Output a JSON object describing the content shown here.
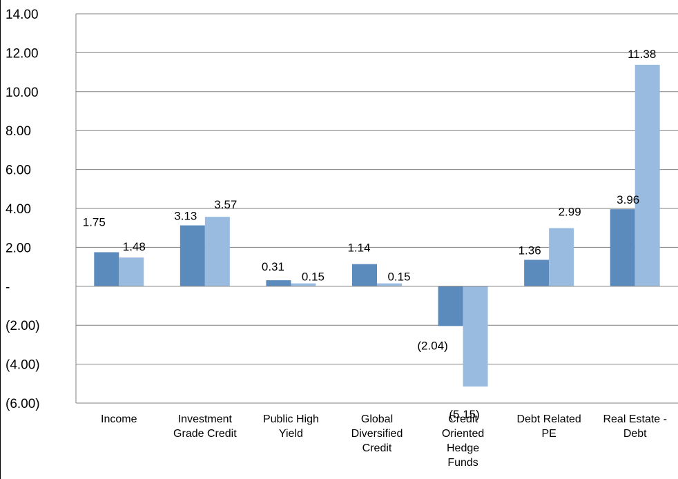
{
  "chart_data": {
    "type": "bar",
    "title": "",
    "xlabel": "",
    "ylabel": "",
    "ylim": [
      -6,
      14
    ],
    "ytick_values": [
      14,
      12,
      10,
      8,
      6,
      4,
      2,
      0,
      -2,
      -4,
      -6
    ],
    "ytick_labels": [
      "14.00",
      "12.00",
      "10.00",
      "8.00",
      "6.00",
      "4.00",
      "2.00",
      "-",
      "(2.00)",
      "(4.00)",
      "(6.00)"
    ],
    "grid": true,
    "legend": "none",
    "categories": [
      [
        "Income"
      ],
      [
        "Investment",
        "Grade Credit"
      ],
      [
        "Public High",
        "Yield"
      ],
      [
        "Global",
        "Diversified",
        "Credit"
      ],
      [
        "Credit",
        "Oriented",
        "Hedge",
        "Funds"
      ],
      [
        "Debt Related",
        "PE"
      ],
      [
        "Real Estate -",
        "Debt"
      ]
    ],
    "series": [
      {
        "color": "#5b8bbd",
        "values": [
          1.75,
          3.13,
          0.31,
          1.14,
          -2.04,
          1.36,
          3.96
        ],
        "labels": [
          "1.75",
          "3.13",
          "0.31",
          "1.14",
          "(2.04)",
          "1.36",
          "3.96"
        ]
      },
      {
        "color": "#9abbe0",
        "values": [
          1.48,
          3.57,
          0.15,
          0.15,
          -5.15,
          2.99,
          11.38
        ],
        "labels": [
          "1.48",
          "3.57",
          "0.15",
          "0.15",
          "(5.15)",
          "2.99",
          "11.38"
        ]
      }
    ]
  }
}
